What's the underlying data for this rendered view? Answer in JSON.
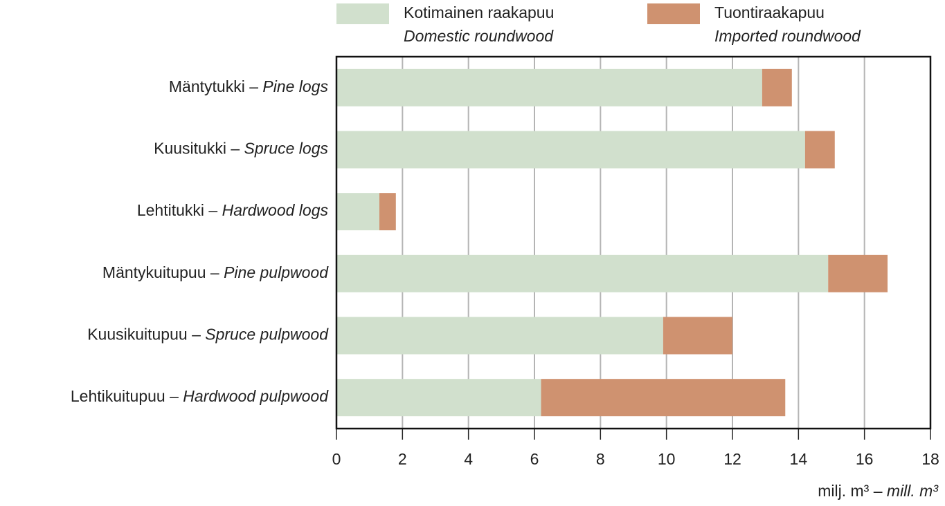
{
  "chart_data": {
    "type": "stacked-barh",
    "categories": [
      "Mäntytukki – Pine logs",
      "Kuusitukki – Spruce logs",
      "Lehtitukki – Hardwood logs",
      "Mäntykuitupuu – Pine pulpwood",
      "Kuusikuitupuu – Spruce pulpwood",
      "Lehtikuitupuu – Hardwood pulpwood"
    ],
    "series": [
      {
        "name": "Kotimainen raakapuu",
        "subname": "Domestic roundwood",
        "color": "#d1e0cd",
        "values": [
          12.9,
          14.2,
          1.3,
          14.9,
          9.9,
          6.2
        ]
      },
      {
        "name": "Tuontiraakapuu",
        "subname": "Imported roundwood",
        "color": "#cf9270",
        "values": [
          0.9,
          0.9,
          0.5,
          1.8,
          2.1,
          7.4
        ]
      }
    ],
    "xlabel": "milj. m³ – mill. m³",
    "xlim": [
      0,
      18
    ],
    "xticks": [
      0,
      2,
      4,
      6,
      8,
      10,
      12,
      14,
      16,
      18
    ],
    "grid": true
  }
}
